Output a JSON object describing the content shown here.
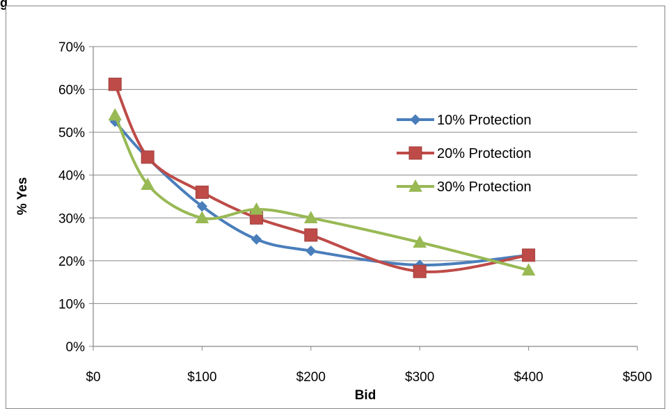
{
  "figure_title_fragment": "g",
  "chart_data": {
    "type": "line",
    "title": "",
    "xlabel": "Bid",
    "ylabel": "% Yes",
    "xlim": [
      0,
      500
    ],
    "ylim": [
      0,
      0.7
    ],
    "x_ticks": [
      0,
      100,
      200,
      300,
      400,
      500
    ],
    "x_tick_labels": [
      "$0",
      "$100",
      "$200",
      "$300",
      "$400",
      "$500"
    ],
    "y_ticks": [
      0,
      0.1,
      0.2,
      0.3,
      0.4,
      0.5,
      0.6,
      0.7
    ],
    "y_tick_labels": [
      "0%",
      "10%",
      "20%",
      "30%",
      "40%",
      "50%",
      "60%",
      "70%"
    ],
    "grid": "horizontal",
    "legend_position": "right",
    "series": [
      {
        "name": "10% Protection",
        "color": "#4a7ebb",
        "marker": "diamond",
        "x": [
          20,
          50,
          100,
          150,
          200,
          300,
          400
        ],
        "y": [
          0.525,
          0.44,
          0.327,
          0.25,
          0.223,
          0.19,
          0.213
        ]
      },
      {
        "name": "20% Protection",
        "color": "#be4b48",
        "marker": "square",
        "x": [
          20,
          50,
          100,
          150,
          200,
          300,
          400
        ],
        "y": [
          0.612,
          0.442,
          0.36,
          0.3,
          0.26,
          0.175,
          0.213
        ]
      },
      {
        "name": "30% Protection",
        "color": "#98b954",
        "marker": "triangle",
        "x": [
          20,
          50,
          100,
          150,
          200,
          300,
          400
        ],
        "y": [
          0.54,
          0.378,
          0.3,
          0.32,
          0.3,
          0.243,
          0.178
        ]
      }
    ]
  }
}
